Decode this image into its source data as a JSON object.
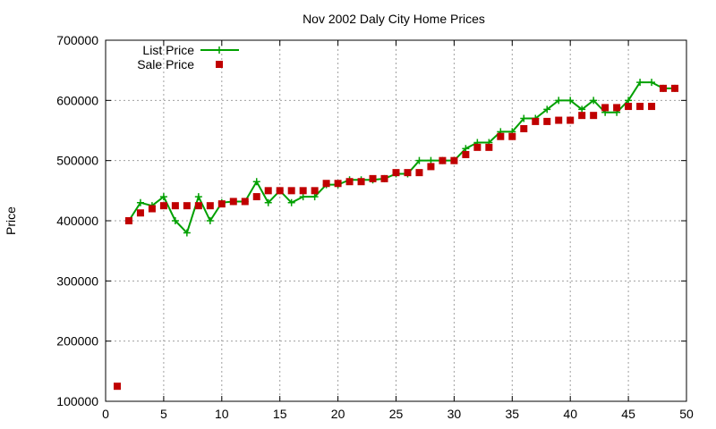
{
  "chart_data": {
    "type": "line",
    "title": "Nov 2002 Daly City Home Prices",
    "xlabel": "",
    "ylabel": "Price",
    "xlim": [
      0,
      50
    ],
    "ylim": [
      100000,
      700000
    ],
    "x_ticks": [
      "0",
      "5",
      "10",
      "15",
      "20",
      "25",
      "30",
      "35",
      "40",
      "45",
      "50"
    ],
    "y_ticks": [
      "100000",
      "200000",
      "300000",
      "400000",
      "500000",
      "600000",
      "700000"
    ],
    "grid": true,
    "legend_position": "top-left",
    "series": [
      {
        "name": "List Price",
        "style": "line+cross",
        "color": "#00a000",
        "x": [
          2,
          3,
          4,
          5,
          6,
          7,
          8,
          9,
          10,
          11,
          12,
          13,
          14,
          15,
          16,
          17,
          18,
          19,
          20,
          21,
          22,
          23,
          24,
          25,
          26,
          27,
          28,
          29,
          30,
          31,
          32,
          33,
          34,
          35,
          36,
          37,
          38,
          39,
          40,
          41,
          42,
          43,
          44,
          45,
          46,
          47,
          48,
          49
        ],
        "y": [
          400000,
          430000,
          425000,
          440000,
          400000,
          380000,
          440000,
          400000,
          430000,
          432000,
          432000,
          465000,
          430000,
          450000,
          430000,
          440000,
          440000,
          460000,
          460000,
          468000,
          468000,
          468000,
          470000,
          478000,
          478000,
          500000,
          500000,
          500000,
          500000,
          520000,
          530000,
          530000,
          548000,
          548000,
          570000,
          570000,
          585000,
          600000,
          600000,
          585000,
          600000,
          580000,
          580000,
          600000,
          630000,
          630000,
          620000,
          620000
        ]
      },
      {
        "name": "Sale Price",
        "style": "square-points",
        "color": "#c00000",
        "x": [
          1,
          2,
          3,
          4,
          5,
          6,
          7,
          8,
          9,
          10,
          11,
          12,
          13,
          14,
          15,
          16,
          17,
          18,
          19,
          20,
          21,
          22,
          23,
          24,
          25,
          26,
          27,
          28,
          29,
          30,
          31,
          32,
          33,
          34,
          35,
          36,
          37,
          38,
          39,
          40,
          41,
          42,
          43,
          44,
          45,
          46,
          47,
          48,
          49
        ],
        "y": [
          125000,
          400000,
          413000,
          420000,
          425000,
          425000,
          425000,
          425000,
          425000,
          428000,
          432000,
          432000,
          440000,
          450000,
          450000,
          450000,
          450000,
          450000,
          462000,
          462000,
          465000,
          465000,
          470000,
          470000,
          480000,
          480000,
          480000,
          490000,
          500000,
          500000,
          510000,
          522000,
          522000,
          540000,
          540000,
          553000,
          565000,
          565000,
          567000,
          567000,
          575000,
          575000,
          588000,
          588000,
          590000,
          590000,
          590000,
          620000,
          620000
        ]
      }
    ]
  }
}
